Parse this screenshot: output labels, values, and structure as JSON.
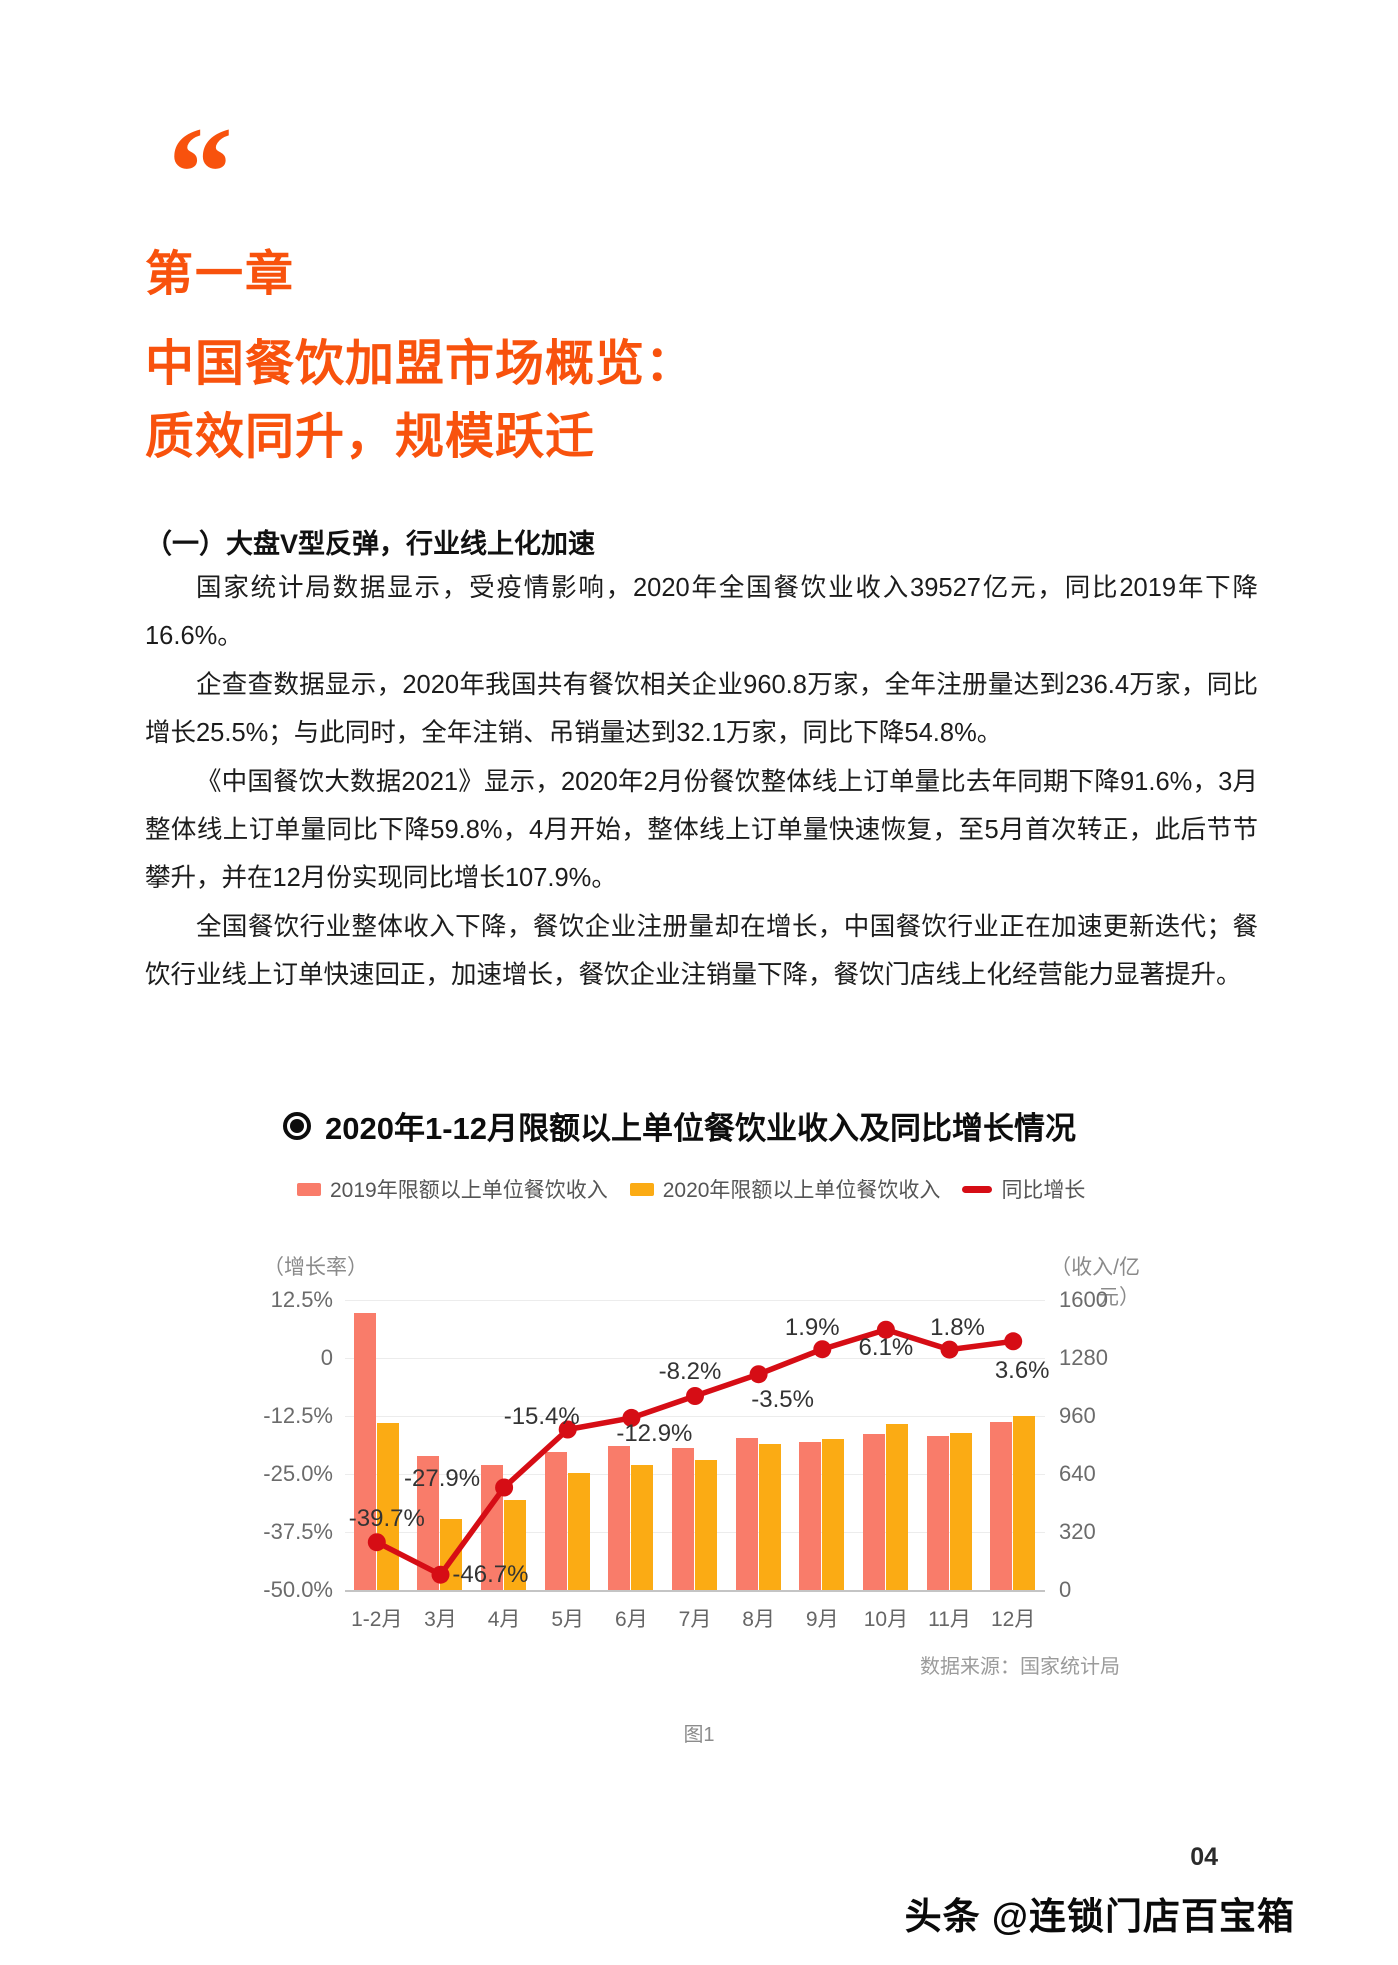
{
  "page": {
    "quote_mark": "“",
    "chapter": "第一章",
    "title_line1": "中国餐饮加盟市场概览：",
    "title_line2": "质效同升，规模跃迁",
    "page_number": "04",
    "watermark": "头条 @连锁门店百宝箱"
  },
  "body": {
    "section_heading": "（一）大盘V型反弹，行业线上化加速",
    "paragraphs": [
      "国家统计局数据显示，受疫情影响，2020年全国餐饮业收入39527亿元，同比2019年下降16.6%。",
      "企查查数据显示，2020年我国共有餐饮相关企业960.8万家，全年注册量达到236.4万家，同比增长25.5%；与此同时，全年注销、吊销量达到32.1万家，同比下降54.8%。",
      "《中国餐饮大数据2021》显示，2020年2月份餐饮整体线上订单量比去年同期下降91.6%，3月整体线上订单量同比下降59.8%，4月开始，整体线上订单量快速恢复，至5月首次转正，此后节节攀升，并在12月份实现同比增长107.9%。",
      "全国餐饮行业整体收入下降，餐饮企业注册量却在增长，中国餐饮行业正在加速更新迭代；餐饮行业线上订单快速回正，加速增长，餐饮企业注销量下降，餐饮门店线上化经营能力显著提升。"
    ]
  },
  "chart": {
    "title": "2020年1-12月限额以上单位餐饮业收入及同比增长情况",
    "source_note": "数据来源：国家统计局",
    "caption": "图1",
    "colors": {
      "heading_accent": "#F8520D",
      "bar_2019": "#F97C6A",
      "bar_2020": "#FBAB14",
      "line": "#D60D15"
    }
  },
  "chart_data": {
    "type": "bar+line",
    "title": "2020年1-12月限额以上单位餐饮业收入及同比增长情况",
    "categories": [
      "1-2月",
      "3月",
      "4月",
      "5月",
      "6月",
      "7月",
      "8月",
      "9月",
      "10月",
      "11月",
      "12月"
    ],
    "series": [
      {
        "name": "2019年限额以上单位餐饮收入",
        "type": "bar",
        "axis": "right",
        "color": "#F97C6A",
        "values": [
          1530,
          737,
          690,
          764,
          792,
          781,
          836,
          819,
          863,
          852,
          929
        ]
      },
      {
        "name": "2020年限额以上单位餐饮收入",
        "type": "bar",
        "axis": "right",
        "color": "#FBAB14",
        "values": [
          923,
          393,
          498,
          646,
          690,
          717,
          807,
          835,
          916,
          867,
          962
        ]
      },
      {
        "name": "同比增长",
        "type": "line",
        "axis": "left",
        "color": "#D60D15",
        "values": [
          -39.7,
          -46.7,
          -27.9,
          -15.4,
          -12.9,
          -8.2,
          -3.5,
          1.9,
          6.1,
          1.8,
          3.6
        ],
        "labels": [
          "-39.7%",
          "-46.7%",
          "-27.9%",
          "-15.4%",
          "-12.9%",
          "-8.2%",
          "-3.5%",
          "1.9%",
          "6.1%",
          "1.8%",
          "3.6%"
        ]
      }
    ],
    "left_axis": {
      "label": "（增长率）",
      "ticks": [
        "12.5%",
        "0",
        "-12.5%",
        "-25.0%",
        "-37.5%",
        "-50.0%"
      ],
      "min": -50,
      "max": 12.5
    },
    "right_axis": {
      "label": "（收入/亿元）",
      "ticks": [
        "1600",
        "1280",
        "960",
        "640",
        "320",
        "0"
      ],
      "min": 0,
      "max": 1600
    },
    "grid": true,
    "legend_position": "top",
    "note": "bar values in 亿元 estimated from gridlines"
  }
}
